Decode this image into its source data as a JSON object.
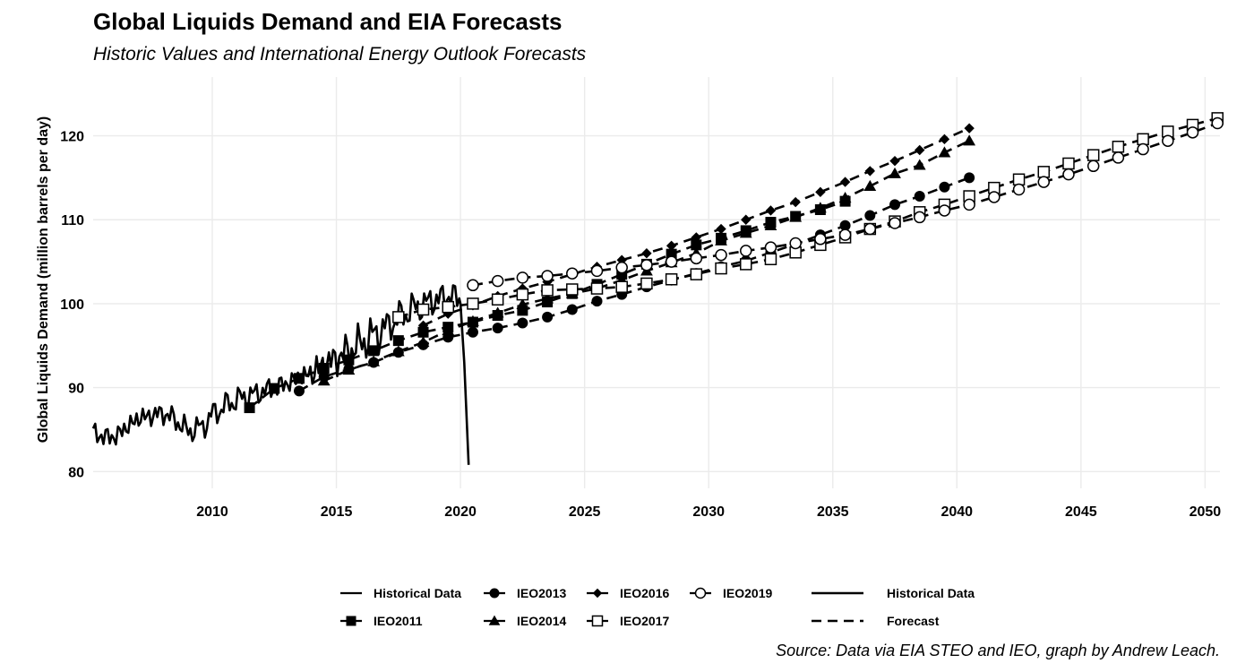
{
  "chart_data": {
    "type": "line",
    "title": "Global Liquids Demand and EIA Forecasts",
    "subtitle": "Historic Values and International Energy Outlook Forecasts",
    "ylabel": "Global Liquids Demand (million barrels per day)",
    "xlabel": "",
    "caption": "Source: Data via EIA STEO and IEO, graph by Andrew Leach.",
    "xlim": [
      2005.2,
      2050.6
    ],
    "ylim": [
      78,
      127
    ],
    "x_ticks": [
      2010,
      2015,
      2020,
      2025,
      2030,
      2035,
      2040,
      2045,
      2050
    ],
    "y_ticks": [
      80,
      90,
      100,
      110,
      120
    ],
    "grid": true,
    "legend_position": "bottom",
    "legend_groups": {
      "series": [
        "Historical Data",
        "IEO2011",
        "IEO2013",
        "IEO2014",
        "IEO2016",
        "IEO2017",
        "IEO2019"
      ],
      "linetype": [
        "Historical Data",
        "Forecast"
      ]
    },
    "historical": {
      "name": "Historical Data",
      "anchors": [
        [
          2005.2,
          84.5
        ],
        [
          2006.0,
          84.0
        ],
        [
          2007.0,
          86.3
        ],
        [
          2008.0,
          87.0
        ],
        [
          2008.5,
          86.2
        ],
        [
          2009.0,
          84.8
        ],
        [
          2009.6,
          85.3
        ],
        [
          2010.0,
          86.8
        ],
        [
          2010.5,
          87.8
        ],
        [
          2011.0,
          88.6
        ],
        [
          2012.0,
          89.5
        ],
        [
          2013.0,
          90.5
        ],
        [
          2014.0,
          91.8
        ],
        [
          2015.0,
          93.5
        ],
        [
          2016.0,
          95.3
        ],
        [
          2017.0,
          97.2
        ],
        [
          2018.0,
          99.3
        ],
        [
          2019.0,
          100.5
        ],
        [
          2019.8,
          101.0
        ],
        [
          2020.0,
          100.0
        ],
        [
          2020.15,
          93.0
        ],
        [
          2020.33,
          80.8
        ]
      ]
    },
    "forecasts": [
      {
        "name": "IEO2011",
        "marker": "square",
        "x": [
          2011.5,
          2012.5,
          2013.5,
          2014.5,
          2015.5,
          2016.5,
          2017.5,
          2018.5,
          2019.5,
          2020.5,
          2021.5,
          2022.5,
          2023.5,
          2024.5,
          2025.5,
          2026.5,
          2027.5,
          2028.5,
          2029.5,
          2030.5,
          2031.5,
          2032.5,
          2033.5,
          2034.5,
          2035.5
        ],
        "y": [
          87.6,
          89.9,
          91.1,
          92.3,
          93.3,
          94.4,
          95.6,
          96.6,
          97.2,
          97.8,
          98.6,
          99.2,
          100.2,
          101.2,
          102.3,
          103.5,
          104.7,
          105.9,
          107.0,
          107.8,
          108.7,
          109.7,
          110.4,
          111.2,
          112.2
        ]
      },
      {
        "name": "IEO2013",
        "marker": "circle",
        "x": [
          2013.5,
          2014.5,
          2015.5,
          2016.5,
          2017.5,
          2018.5,
          2019.5,
          2020.5,
          2021.5,
          2022.5,
          2023.5,
          2024.5,
          2025.5,
          2026.5,
          2027.5,
          2028.5,
          2029.5,
          2030.5,
          2031.5,
          2032.5,
          2033.5,
          2034.5,
          2035.5,
          2036.5,
          2037.5,
          2038.5,
          2039.5,
          2040.5
        ],
        "y": [
          89.6,
          91.3,
          92.2,
          93.0,
          94.2,
          95.1,
          96.0,
          96.6,
          97.1,
          97.7,
          98.4,
          99.3,
          100.3,
          101.1,
          102.0,
          102.8,
          103.6,
          104.4,
          105.1,
          106.1,
          107.1,
          108.2,
          109.3,
          110.5,
          111.8,
          112.8,
          113.9,
          115.0
        ]
      },
      {
        "name": "IEO2014",
        "marker": "triangle",
        "x": [
          2014.5,
          2015.5,
          2016.5,
          2017.5,
          2018.5,
          2019.5,
          2020.5,
          2021.5,
          2022.5,
          2023.5,
          2024.5,
          2025.5,
          2026.5,
          2027.5,
          2028.5,
          2029.5,
          2030.5,
          2031.5,
          2032.5,
          2033.5,
          2034.5,
          2035.5,
          2036.5,
          2037.5,
          2038.5,
          2039.5,
          2040.5
        ],
        "y": [
          90.8,
          92.1,
          93.1,
          94.3,
          95.4,
          96.8,
          97.9,
          98.9,
          99.9,
          100.6,
          101.2,
          101.8,
          102.8,
          103.9,
          104.9,
          106.0,
          107.5,
          108.4,
          109.3,
          110.3,
          111.4,
          112.6,
          114.0,
          115.5,
          116.5,
          118.0,
          119.4
        ]
      },
      {
        "name": "IEO2016",
        "marker": "diamond",
        "x": [
          2018.5,
          2019.5,
          2020.5,
          2021.5,
          2022.5,
          2023.5,
          2024.5,
          2025.5,
          2026.5,
          2027.5,
          2028.5,
          2029.5,
          2030.5,
          2031.5,
          2032.5,
          2033.5,
          2034.5,
          2035.5,
          2036.5,
          2037.5,
          2038.5,
          2039.5,
          2040.5
        ],
        "y": [
          97.4,
          98.8,
          99.8,
          100.9,
          101.8,
          102.6,
          103.5,
          104.4,
          105.2,
          106.0,
          106.9,
          107.9,
          108.9,
          110.0,
          111.1,
          112.1,
          113.3,
          114.5,
          115.8,
          117.0,
          118.3,
          119.6,
          120.9
        ]
      },
      {
        "name": "IEO2017",
        "marker": "square-open",
        "x": [
          2017.5,
          2018.5,
          2019.5,
          2020.5,
          2021.5,
          2022.5,
          2023.5,
          2024.5,
          2025.5,
          2026.5,
          2027.5,
          2028.5,
          2029.5,
          2030.5,
          2031.5,
          2032.5,
          2033.5,
          2034.5,
          2035.5,
          2036.5,
          2037.5,
          2038.5,
          2039.5,
          2040.5,
          2041.5,
          2042.5,
          2043.5,
          2044.5,
          2045.5,
          2046.5,
          2047.5,
          2048.5,
          2049.5,
          2050.5
        ],
        "y": [
          98.4,
          99.3,
          99.6,
          100.0,
          100.5,
          101.1,
          101.6,
          101.7,
          101.8,
          102.0,
          102.4,
          102.9,
          103.5,
          104.2,
          104.7,
          105.3,
          106.1,
          107.0,
          107.9,
          108.9,
          109.8,
          110.9,
          111.8,
          112.8,
          113.8,
          114.8,
          115.7,
          116.7,
          117.7,
          118.7,
          119.6,
          120.5,
          121.3,
          122.1
        ]
      },
      {
        "name": "IEO2019",
        "marker": "circle-open",
        "x": [
          2020.5,
          2021.5,
          2022.5,
          2023.5,
          2024.5,
          2025.5,
          2026.5,
          2027.5,
          2028.5,
          2029.5,
          2030.5,
          2031.5,
          2032.5,
          2033.5,
          2034.5,
          2035.5,
          2036.5,
          2037.5,
          2038.5,
          2039.5,
          2040.5,
          2041.5,
          2042.5,
          2043.5,
          2044.5,
          2045.5,
          2046.5,
          2047.5,
          2048.5,
          2049.5,
          2050.5
        ],
        "y": [
          102.2,
          102.7,
          103.1,
          103.3,
          103.6,
          103.9,
          104.3,
          104.6,
          105.0,
          105.4,
          105.8,
          106.3,
          106.7,
          107.2,
          107.7,
          108.2,
          108.9,
          109.6,
          110.3,
          111.1,
          111.8,
          112.7,
          113.6,
          114.5,
          115.4,
          116.4,
          117.4,
          118.4,
          119.4,
          120.4,
          121.5
        ]
      }
    ]
  }
}
